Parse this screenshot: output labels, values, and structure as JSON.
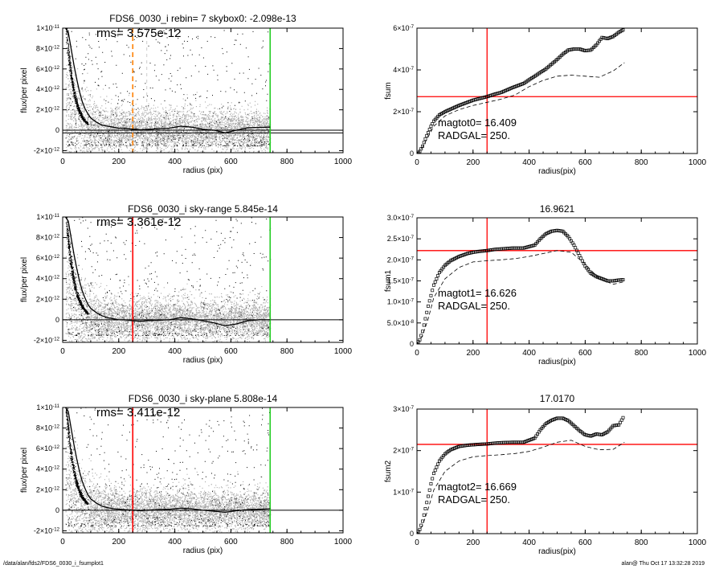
{
  "footer": {
    "path": "/data/alan/fds2/FDS6_0030_i_fsumplot1",
    "stamp": "alan@  Thu Oct 17 13:32:28 2019"
  },
  "colors": {
    "scatter_gray": "#aaaaaa",
    "dots_black": "#000000",
    "red": "#ff0000",
    "green": "#22cc22",
    "orange": "#ff8000"
  },
  "chart_data": [
    {
      "type": "scatter",
      "title": "FDS6_0030_i rebin= 7    skybox0: -2.098e-13",
      "annotation": "rms= 3.575e-12",
      "xlabel": "radius (pix)",
      "ylabel": "flux/per pixel",
      "xlim": [
        0,
        1000
      ],
      "ylim": [
        -2.2e-12,
        1e-11
      ],
      "xticks": [
        "0",
        "200",
        "400",
        "600",
        "800",
        "1000"
      ],
      "yticks": [
        {
          "v": -2e-12,
          "m": "-2",
          "e": "-12"
        },
        {
          "v": 0,
          "m": "0",
          "e": ""
        },
        {
          "v": 2e-12,
          "m": "2",
          "e": "-12"
        },
        {
          "v": 4e-12,
          "m": "4",
          "e": "-12"
        },
        {
          "v": 6e-12,
          "m": "6",
          "e": "-12"
        },
        {
          "v": 8e-12,
          "m": "8",
          "e": "-12"
        },
        {
          "v": 1e-11,
          "m": "1",
          "e": "-11"
        }
      ],
      "hlines": [
        -2.6e-13,
        0
      ],
      "vlines": [
        {
          "x": 250,
          "color": "#ff8000",
          "dash": true,
          "xend": 300
        },
        {
          "x": 740,
          "color": "#22cc22",
          "dash": false
        }
      ],
      "profile": {
        "x": [
          10,
          20,
          30,
          40,
          50,
          60,
          70,
          80,
          90,
          100,
          120,
          140,
          160,
          180,
          200,
          220,
          250,
          280,
          300,
          340,
          380,
          420,
          460,
          500,
          540,
          580,
          620,
          660,
          700,
          740
        ],
        "y": [
          1e-11,
          9.6e-12,
          8e-12,
          6.4e-12,
          5e-12,
          3.8e-12,
          2.8e-12,
          2.1e-12,
          1.6e-12,
          1.2e-12,
          8e-13,
          5e-13,
          4e-13,
          3e-13,
          2e-13,
          2e-13,
          1e-13,
          5e-14,
          8e-14,
          1.5e-13,
          2e-13,
          4e-13,
          3e-13,
          1e-13,
          0,
          -2.5e-13,
          0,
          2.5e-13,
          2.8e-13,
          3e-13
        ]
      }
    },
    {
      "type": "line",
      "title": "",
      "xlabel": "radius(pix)",
      "ylabel": "fsum",
      "xlim": [
        0,
        1000
      ],
      "ylim": [
        0,
        6e-07
      ],
      "xticks": [
        "0",
        "200",
        "400",
        "600",
        "800",
        "1000"
      ],
      "yticks": [
        {
          "v": 0,
          "m": "0",
          "e": ""
        },
        {
          "v": 2e-07,
          "m": "2",
          "e": "-7"
        },
        {
          "v": 4e-07,
          "m": "4",
          "e": "-7"
        },
        {
          "v": 6e-07,
          "m": "6",
          "e": "-7"
        }
      ],
      "hline": 2.72e-07,
      "vline": 250,
      "text_lines": [
        "magtot0=  16.409",
        "RADGAL=    250."
      ],
      "series": [
        {
          "style": "squares",
          "x": [
            0,
            10,
            20,
            30,
            40,
            50,
            60,
            80,
            100,
            120,
            150,
            180,
            200,
            220,
            250,
            280,
            300,
            340,
            380,
            420,
            460,
            500,
            520,
            540,
            560,
            580,
            600,
            620,
            640,
            660,
            680,
            700,
            720,
            740
          ],
          "y": [
            0,
            1e-08,
            3.5e-08,
            7e-08,
            1e-07,
            1.3e-07,
            1.55e-07,
            1.85e-07,
            2e-07,
            2.12e-07,
            2.3e-07,
            2.45e-07,
            2.55e-07,
            2.62e-07,
            2.72e-07,
            2.85e-07,
            2.92e-07,
            3.15e-07,
            3.35e-07,
            3.7e-07,
            4.05e-07,
            4.5e-07,
            4.75e-07,
            4.95e-07,
            5e-07,
            5e-07,
            4.92e-07,
            4.95e-07,
            5.2e-07,
            5.55e-07,
            5.5e-07,
            5.6e-07,
            5.8e-07,
            5.95e-07
          ]
        },
        {
          "style": "dashed",
          "x": [
            0,
            20,
            40,
            60,
            100,
            150,
            200,
            250,
            300,
            350,
            400,
            450,
            500,
            550,
            600,
            650,
            700,
            740
          ],
          "y": [
            0,
            3e-08,
            8e-08,
            1.3e-07,
            1.8e-07,
            2.1e-07,
            2.3e-07,
            2.45e-07,
            2.6e-07,
            2.8e-07,
            3.2e-07,
            3.5e-07,
            3.7e-07,
            3.75e-07,
            3.7e-07,
            3.65e-07,
            3.95e-07,
            4.35e-07
          ]
        }
      ]
    },
    {
      "type": "scatter",
      "title": "FDS6_0030_i sky-range  5.845e-14",
      "annotation": "rms= 3.361e-12",
      "xlabel": "radius (pix)",
      "ylabel": "flux/per pixel",
      "xlim": [
        0,
        1000
      ],
      "ylim": [
        -2.2e-12,
        1e-11
      ],
      "xticks": [
        "0",
        "200",
        "400",
        "600",
        "800",
        "1000"
      ],
      "yticks": [
        {
          "v": -2e-12,
          "m": "-2",
          "e": "-12"
        },
        {
          "v": 0,
          "m": "0",
          "e": ""
        },
        {
          "v": 2e-12,
          "m": "2",
          "e": "-12"
        },
        {
          "v": 4e-12,
          "m": "4",
          "e": "-12"
        },
        {
          "v": 6e-12,
          "m": "6",
          "e": "-12"
        },
        {
          "v": 8e-12,
          "m": "8",
          "e": "-12"
        },
        {
          "v": 1e-11,
          "m": "1",
          "e": "-11"
        }
      ],
      "hlines": [
        0
      ],
      "vlines": [
        {
          "x": 250,
          "color": "#ff0000",
          "dash": false
        },
        {
          "x": 740,
          "color": "#22cc22",
          "dash": false
        }
      ],
      "profile": {
        "x": [
          10,
          20,
          30,
          40,
          50,
          60,
          70,
          80,
          90,
          100,
          120,
          140,
          160,
          180,
          200,
          220,
          250,
          280,
          300,
          340,
          380,
          420,
          460,
          500,
          540,
          580,
          620,
          660,
          700,
          740
        ],
        "y": [
          1e-11,
          9.6e-12,
          8e-12,
          6.4e-12,
          5e-12,
          3.8e-12,
          2.8e-12,
          2.1e-12,
          1.5e-12,
          1.1e-12,
          7e-13,
          4e-13,
          2e-13,
          1e-13,
          0,
          0,
          -1e-13,
          -1.5e-13,
          -1e-13,
          -5e-14,
          0,
          2e-13,
          1e-13,
          -1e-13,
          -3e-13,
          -6e-13,
          -4e-13,
          -1e-13,
          0,
          0
        ]
      }
    },
    {
      "type": "line",
      "title": "16.9621",
      "xlabel": "radius(pix)",
      "ylabel": "fsum1",
      "xlim": [
        0,
        1000
      ],
      "ylim": [
        0,
        3e-07
      ],
      "xticks": [
        "0",
        "200",
        "400",
        "600",
        "800",
        "1000"
      ],
      "yticks": [
        {
          "v": 0,
          "m": "0",
          "e": ""
        },
        {
          "v": 5e-08,
          "m": "5.0",
          "e": "-8"
        },
        {
          "v": 1e-07,
          "m": "1.0",
          "e": "-7"
        },
        {
          "v": 1.5e-07,
          "m": "1.5",
          "e": "-7"
        },
        {
          "v": 2e-07,
          "m": "2.0",
          "e": "-7"
        },
        {
          "v": 2.5e-07,
          "m": "2.5",
          "e": "-7"
        },
        {
          "v": 3e-07,
          "m": "3.0",
          "e": "-7"
        }
      ],
      "hline": 2.22e-07,
      "vline": 250,
      "text_lines": [
        "magtot1=  16.626",
        "RADGAL=    250."
      ],
      "series": [
        {
          "style": "squares",
          "x": [
            0,
            10,
            20,
            30,
            40,
            50,
            60,
            80,
            100,
            120,
            150,
            180,
            200,
            220,
            250,
            280,
            300,
            340,
            380,
            420,
            440,
            460,
            480,
            500,
            520,
            540,
            560,
            580,
            600,
            620,
            640,
            660,
            680,
            700,
            720,
            740
          ],
          "y": [
            0,
            1e-08,
            3e-08,
            6e-08,
            9e-08,
            1.15e-07,
            1.4e-07,
            1.7e-07,
            1.87e-07,
            1.98e-07,
            2.08e-07,
            2.15e-07,
            2.18e-07,
            2.2e-07,
            2.22e-07,
            2.25e-07,
            2.26e-07,
            2.28e-07,
            2.28e-07,
            2.35e-07,
            2.5e-07,
            2.62e-07,
            2.68e-07,
            2.7e-07,
            2.68e-07,
            2.55e-07,
            2.35e-07,
            2.1e-07,
            1.85e-07,
            1.68e-07,
            1.6e-07,
            1.55e-07,
            1.5e-07,
            1.5e-07,
            1.52e-07,
            1.53e-07
          ]
        },
        {
          "style": "dashed",
          "x": [
            0,
            20,
            40,
            60,
            100,
            150,
            200,
            250,
            300,
            350,
            400,
            450,
            500,
            550,
            600,
            650,
            700,
            740
          ],
          "y": [
            0,
            2e-08,
            6e-08,
            1.1e-07,
            1.55e-07,
            1.82e-07,
            1.95e-07,
            1.98e-07,
            2e-07,
            2.03e-07,
            2.08e-07,
            2.15e-07,
            2.22e-07,
            2.18e-07,
            1.9e-07,
            1.55e-07,
            1.42e-07,
            1.48e-07
          ]
        }
      ]
    },
    {
      "type": "scatter",
      "title": "FDS6_0030_i sky-plane  5.808e-14",
      "annotation": "rms= 3.411e-12",
      "xlabel": "radius (pix)",
      "ylabel": "flux/per pixel",
      "xlim": [
        0,
        1000
      ],
      "ylim": [
        -2.2e-12,
        1e-11
      ],
      "xticks": [
        "0",
        "200",
        "400",
        "600",
        "800",
        "1000"
      ],
      "yticks": [
        {
          "v": -2e-12,
          "m": "-2",
          "e": "-12"
        },
        {
          "v": 0,
          "m": "0",
          "e": ""
        },
        {
          "v": 2e-12,
          "m": "2",
          "e": "-12"
        },
        {
          "v": 4e-12,
          "m": "4",
          "e": "-12"
        },
        {
          "v": 6e-12,
          "m": "6",
          "e": "-12"
        },
        {
          "v": 8e-12,
          "m": "8",
          "e": "-12"
        },
        {
          "v": 1e-11,
          "m": "1",
          "e": "-11"
        }
      ],
      "hlines": [
        0
      ],
      "vlines": [
        {
          "x": 250,
          "color": "#ff0000",
          "dash": false
        },
        {
          "x": 740,
          "color": "#22cc22",
          "dash": false
        }
      ],
      "profile": {
        "x": [
          10,
          20,
          30,
          40,
          50,
          60,
          70,
          80,
          90,
          100,
          120,
          140,
          160,
          180,
          200,
          220,
          250,
          280,
          300,
          340,
          380,
          420,
          460,
          500,
          540,
          580,
          620,
          660,
          700,
          740
        ],
        "y": [
          1e-11,
          9.6e-12,
          8e-12,
          6.4e-12,
          5e-12,
          3.8e-12,
          2.8e-12,
          2.1e-12,
          1.5e-12,
          1.1e-12,
          7e-13,
          4e-13,
          2.5e-13,
          1.5e-13,
          1e-13,
          5e-14,
          0,
          -5e-14,
          0,
          5e-14,
          1e-13,
          2e-13,
          1.5e-13,
          0,
          -1e-13,
          -2e-13,
          -5e-14,
          5e-14,
          1e-13,
          1.5e-13
        ]
      }
    },
    {
      "type": "line",
      "title": "17.0170",
      "xlabel": "radius(pix)",
      "ylabel": "fsum2",
      "xlim": [
        0,
        1000
      ],
      "ylim": [
        0,
        3e-07
      ],
      "xticks": [
        "0",
        "200",
        "400",
        "600",
        "800",
        "1000"
      ],
      "yticks": [
        {
          "v": 0,
          "m": "0",
          "e": ""
        },
        {
          "v": 1e-07,
          "m": "1",
          "e": "-7"
        },
        {
          "v": 2e-07,
          "m": "2",
          "e": "-7"
        },
        {
          "v": 3e-07,
          "m": "3",
          "e": "-7"
        }
      ],
      "hline": 2.15e-07,
      "vline": 250,
      "text_lines": [
        "magtot2=  16.669",
        "RADGAL=    250."
      ],
      "series": [
        {
          "style": "squares",
          "x": [
            0,
            10,
            20,
            30,
            40,
            50,
            60,
            80,
            100,
            120,
            150,
            180,
            200,
            220,
            250,
            280,
            300,
            340,
            380,
            420,
            440,
            460,
            480,
            500,
            520,
            540,
            560,
            580,
            600,
            620,
            640,
            660,
            680,
            700,
            720,
            740
          ],
          "y": [
            0,
            1e-08,
            3e-08,
            6e-08,
            9e-08,
            1.2e-07,
            1.45e-07,
            1.75e-07,
            1.92e-07,
            2.02e-07,
            2.1e-07,
            2.13e-07,
            2.14e-07,
            2.15e-07,
            2.16e-07,
            2.18e-07,
            2.19e-07,
            2.2e-07,
            2.2e-07,
            2.3e-07,
            2.5e-07,
            2.65e-07,
            2.73e-07,
            2.78e-07,
            2.78e-07,
            2.72e-07,
            2.6e-07,
            2.48e-07,
            2.38e-07,
            2.35e-07,
            2.4e-07,
            2.38e-07,
            2.45e-07,
            2.6e-07,
            2.62e-07,
            2.85e-07
          ]
        },
        {
          "style": "dashed",
          "x": [
            0,
            20,
            40,
            60,
            100,
            150,
            200,
            250,
            300,
            350,
            400,
            450,
            500,
            550,
            600,
            650,
            700,
            740
          ],
          "y": [
            0,
            2e-08,
            6e-08,
            1.05e-07,
            1.5e-07,
            1.75e-07,
            1.85e-07,
            1.88e-07,
            1.9e-07,
            1.93e-07,
            1.98e-07,
            2.08e-07,
            2.2e-07,
            2.25e-07,
            2.1e-07,
            2.02e-07,
            2.03e-07,
            2.2e-07
          ]
        }
      ]
    }
  ]
}
